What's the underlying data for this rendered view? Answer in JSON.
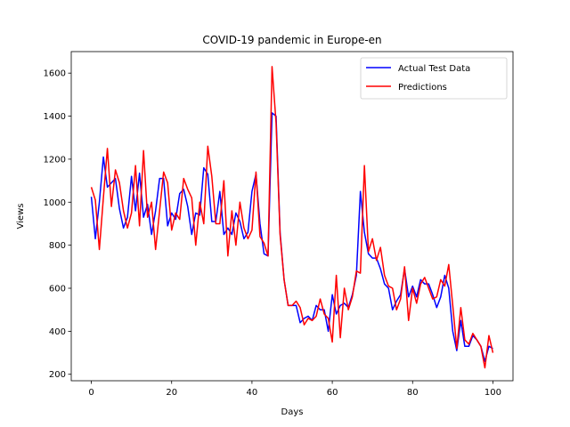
{
  "chart_data": {
    "type": "line",
    "title": "COVID-19 pandemic in Europe-en",
    "xlabel": "Days",
    "ylabel": "Views",
    "xlim": [
      -5,
      105
    ],
    "ylim": [
      170,
      1700
    ],
    "xticks": [
      0,
      20,
      40,
      60,
      80,
      100
    ],
    "yticks": [
      200,
      400,
      600,
      800,
      1000,
      1200,
      1400,
      1600
    ],
    "grid": false,
    "legend_position": "top-right",
    "x": [
      0,
      1,
      2,
      3,
      4,
      5,
      6,
      7,
      8,
      9,
      10,
      11,
      12,
      13,
      14,
      15,
      16,
      17,
      18,
      19,
      20,
      21,
      22,
      23,
      24,
      25,
      26,
      27,
      28,
      29,
      30,
      31,
      32,
      33,
      34,
      35,
      36,
      37,
      38,
      39,
      40,
      41,
      42,
      43,
      44,
      45,
      46,
      47,
      48,
      49,
      50,
      51,
      52,
      53,
      54,
      55,
      56,
      57,
      58,
      59,
      60,
      61,
      62,
      63,
      64,
      65,
      66,
      67,
      68,
      69,
      70,
      71,
      72,
      73,
      74,
      75,
      76,
      77,
      78,
      79,
      80,
      81,
      82,
      83,
      84,
      85,
      86,
      87,
      88,
      89,
      90,
      91,
      92,
      93,
      94,
      95,
      96,
      97,
      98,
      99,
      100
    ],
    "series": [
      {
        "name": "Actual Test Data",
        "color": "#0000ff",
        "values": [
          1025,
          830,
          1000,
          1210,
          1070,
          1090,
          1110,
          970,
          880,
          930,
          1120,
          960,
          1135,
          930,
          990,
          850,
          960,
          1110,
          1110,
          890,
          950,
          920,
          1040,
          1060,
          980,
          850,
          950,
          940,
          1160,
          1130,
          910,
          910,
          1050,
          850,
          880,
          850,
          950,
          910,
          830,
          860,
          1050,
          1130,
          900,
          760,
          750,
          1415,
          1400,
          860,
          640,
          520,
          520,
          520,
          440,
          460,
          470,
          450,
          520,
          500,
          500,
          400,
          570,
          480,
          520,
          530,
          510,
          570,
          660,
          1050,
          860,
          760,
          740,
          740,
          690,
          620,
          600,
          500,
          540,
          570,
          690,
          560,
          610,
          560,
          640,
          620,
          620,
          570,
          510,
          560,
          660,
          600,
          400,
          310,
          450,
          330,
          330,
          380,
          360,
          330,
          260,
          330,
          320
        ]
      },
      {
        "name": "Predictions",
        "color": "#ff0000",
        "values": [
          1070,
          1010,
          780,
          1020,
          1250,
          980,
          1150,
          1090,
          960,
          880,
          950,
          1170,
          890,
          1240,
          930,
          1000,
          780,
          960,
          1140,
          1090,
          870,
          950,
          920,
          1110,
          1060,
          1020,
          800,
          1000,
          900,
          1260,
          1120,
          900,
          900,
          1100,
          750,
          960,
          800,
          1000,
          880,
          830,
          870,
          1140,
          840,
          810,
          750,
          1630,
          1370,
          850,
          640,
          520,
          520,
          540,
          510,
          430,
          460,
          450,
          470,
          550,
          480,
          460,
          350,
          660,
          370,
          600,
          500,
          560,
          680,
          670,
          1170,
          770,
          830,
          730,
          790,
          660,
          610,
          600,
          500,
          550,
          700,
          450,
          600,
          530,
          620,
          650,
          600,
          550,
          560,
          640,
          610,
          710,
          520,
          320,
          510,
          360,
          340,
          390,
          360,
          330,
          230,
          380,
          300
        ]
      }
    ]
  }
}
